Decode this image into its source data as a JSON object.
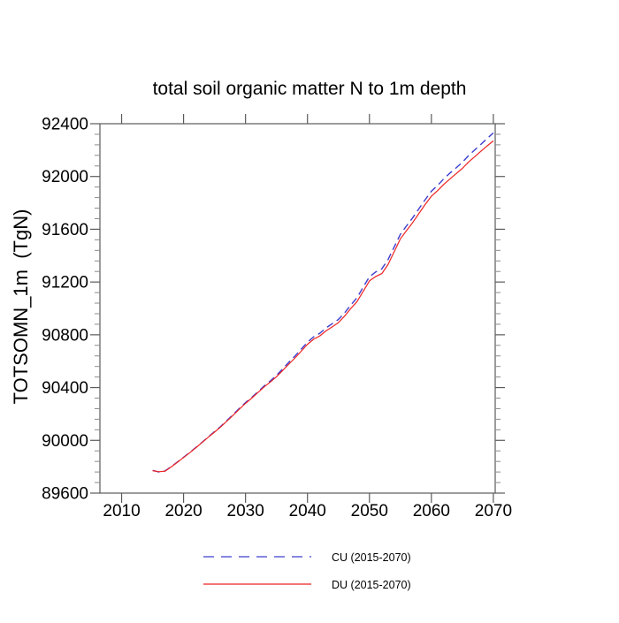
{
  "chart_data": {
    "type": "line",
    "title": "total soil organic matter N to 1m depth",
    "xlabel": "",
    "ylabel": "TOTSOMN_1m  (TgN)",
    "xlim": [
      2006.5,
      2070.3
    ],
    "ylim": [
      89600,
      92400
    ],
    "x_ticks": [
      2010,
      2020,
      2030,
      2040,
      2050,
      2060,
      2070
    ],
    "y_ticks": [
      89600,
      90000,
      90400,
      90800,
      91200,
      91600,
      92000,
      92400
    ],
    "y_minor_step": 80,
    "grid": false,
    "legend_position": "bottom-center",
    "x": [
      2015,
      2016,
      2017,
      2018,
      2019,
      2020,
      2021,
      2022,
      2023,
      2024,
      2025,
      2026,
      2027,
      2028,
      2029,
      2030,
      2031,
      2032,
      2033,
      2034,
      2035,
      2036,
      2037,
      2038,
      2039,
      2040,
      2041,
      2042,
      2043,
      2044,
      2045,
      2046,
      2047,
      2048,
      2049,
      2050,
      2051,
      2052,
      2053,
      2054,
      2055,
      2056,
      2057,
      2058,
      2059,
      2060,
      2061,
      2062,
      2063,
      2064,
      2065,
      2066,
      2067,
      2068,
      2069,
      2070
    ],
    "series": [
      {
        "name": "CU (2015-2070)",
        "color": "#3d3dcf",
        "style": "dashed",
        "values": [
          89772,
          89760,
          89768,
          89800,
          89836,
          89872,
          89908,
          89946,
          89986,
          90026,
          90066,
          90106,
          90150,
          90196,
          90242,
          90286,
          90326,
          90368,
          90412,
          90450,
          90492,
          90542,
          90592,
          90640,
          90692,
          90744,
          90784,
          90812,
          90852,
          90884,
          90916,
          90966,
          91026,
          91082,
          91162,
          91240,
          91276,
          91300,
          91370,
          91466,
          91562,
          91626,
          91688,
          91756,
          91824,
          91888,
          91932,
          91982,
          92026,
          92066,
          92108,
          92158,
          92202,
          92244,
          92288,
          92330
        ]
      },
      {
        "name": "DU (2015-2070)",
        "color": "#ee2222",
        "style": "solid",
        "values": [
          89770,
          89762,
          89766,
          89798,
          89834,
          89870,
          89906,
          89944,
          89984,
          90024,
          90062,
          90102,
          90146,
          90190,
          90236,
          90280,
          90320,
          90362,
          90405,
          90442,
          90482,
          90530,
          90578,
          90625,
          90676,
          90728,
          90766,
          90792,
          90830,
          90860,
          90892,
          90942,
          91000,
          91052,
          91130,
          91208,
          91242,
          91264,
          91332,
          91430,
          91528,
          91590,
          91652,
          91720,
          91788,
          91850,
          91892,
          91940,
          91982,
          92022,
          92062,
          92110,
          92150,
          92192,
          92232,
          92270
        ]
      }
    ]
  },
  "axis": {
    "frame_color": "#5a5a5a",
    "text_color": "#000000"
  }
}
